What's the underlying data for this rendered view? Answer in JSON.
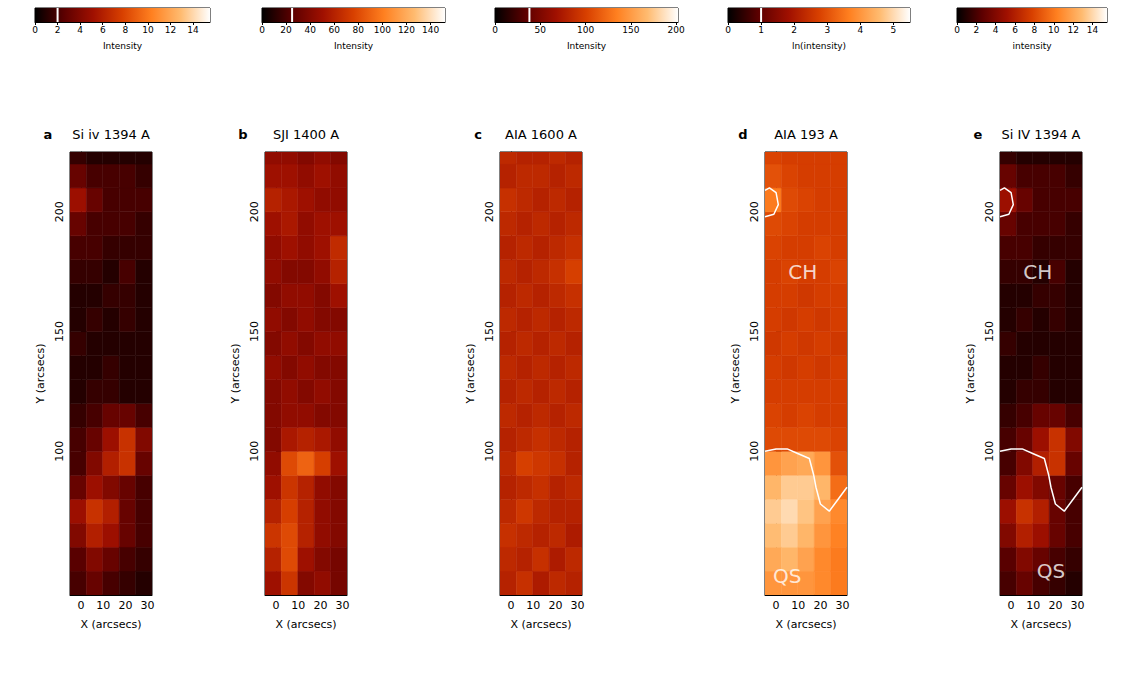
{
  "chart_data": [
    {
      "type": "heatmap",
      "panel_label": "a",
      "title": "Si iv 1394 A",
      "xlabel": "X (arcsecs)",
      "ylabel": "Y (arcsecs)",
      "xlim": [
        -5,
        32
      ],
      "ylim": [
        40,
        225
      ],
      "xticks": [
        0,
        10,
        20,
        30
      ],
      "yticks": [
        100,
        150,
        200
      ],
      "x_edges": [
        -5,
        2.4,
        9.8,
        17.2,
        24.6,
        32
      ],
      "y_edges": [
        40,
        50,
        60,
        70,
        80,
        90,
        100,
        110,
        120,
        130,
        140,
        150,
        160,
        170,
        180,
        190,
        200,
        210,
        220,
        225
      ],
      "values": [
        [
          2,
          3,
          2,
          1.5,
          1
        ],
        [
          2.5,
          4,
          3,
          2,
          1.5
        ],
        [
          4,
          6,
          5,
          3,
          2
        ],
        [
          5,
          7,
          6,
          3,
          2
        ],
        [
          3,
          5,
          4,
          3,
          2
        ],
        [
          2,
          4,
          6,
          7,
          3
        ],
        [
          2,
          3,
          5,
          7,
          4
        ],
        [
          1.5,
          2,
          3,
          3,
          2
        ],
        [
          1,
          1.5,
          1.5,
          1,
          1
        ],
        [
          1,
          1,
          1.5,
          1,
          1
        ],
        [
          1.5,
          1,
          1,
          1,
          1
        ],
        [
          1,
          1.5,
          1,
          1.5,
          1
        ],
        [
          1,
          1,
          1.5,
          1.5,
          1
        ],
        [
          1.5,
          1.5,
          1,
          2,
          1
        ],
        [
          2,
          2,
          1.5,
          1.5,
          1.5
        ],
        [
          3,
          2,
          2,
          2,
          1.5
        ],
        [
          5,
          3,
          2,
          2,
          2
        ],
        [
          3,
          2,
          2,
          2,
          1.5
        ],
        [
          1.5,
          1,
          1,
          1,
          1
        ]
      ],
      "colorbar": {
        "label": "Intensity",
        "range": [
          0,
          15.5
        ],
        "ticks": [
          0,
          2,
          4,
          6,
          8,
          10,
          12,
          14
        ],
        "marker": 2
      },
      "annotations": [],
      "contours": []
    },
    {
      "type": "heatmap",
      "panel_label": "b",
      "title": "SJI 1400 A",
      "xlabel": "X (arcsecs)",
      "ylabel": "Y (arcsecs)",
      "xlim": [
        -5,
        32
      ],
      "ylim": [
        40,
        225
      ],
      "xticks": [
        0,
        10,
        20,
        30
      ],
      "yticks": [
        100,
        150,
        200
      ],
      "x_edges": [
        -5,
        2.4,
        9.8,
        17.2,
        24.6,
        32
      ],
      "y_edges": [
        40,
        50,
        60,
        70,
        80,
        90,
        100,
        110,
        120,
        130,
        140,
        150,
        160,
        170,
        180,
        190,
        200,
        210,
        220,
        225
      ],
      "values": [
        [
          50,
          70,
          40,
          45,
          35
        ],
        [
          60,
          80,
          50,
          40,
          35
        ],
        [
          70,
          80,
          60,
          45,
          40
        ],
        [
          60,
          75,
          60,
          45,
          40
        ],
        [
          50,
          70,
          60,
          45,
          40
        ],
        [
          45,
          80,
          90,
          75,
          50
        ],
        [
          40,
          55,
          60,
          55,
          45
        ],
        [
          40,
          45,
          45,
          40,
          40
        ],
        [
          40,
          45,
          40,
          45,
          40
        ],
        [
          45,
          40,
          45,
          40,
          40
        ],
        [
          40,
          45,
          40,
          45,
          45
        ],
        [
          45,
          40,
          45,
          40,
          40
        ],
        [
          40,
          45,
          45,
          40,
          50
        ],
        [
          45,
          40,
          40,
          45,
          60
        ],
        [
          45,
          50,
          45,
          50,
          65
        ],
        [
          50,
          55,
          45,
          50,
          50
        ],
        [
          60,
          55,
          50,
          45,
          45
        ],
        [
          50,
          50,
          45,
          50,
          45
        ],
        [
          45,
          45,
          40,
          45,
          40
        ]
      ],
      "colorbar": {
        "label": "Intensity",
        "range": [
          0,
          152
        ],
        "ticks": [
          0,
          20,
          40,
          60,
          80,
          100,
          120,
          140
        ],
        "marker": 25
      },
      "annotations": [],
      "contours": []
    },
    {
      "type": "heatmap",
      "panel_label": "c",
      "title": "AIA 1600 A",
      "xlabel": "X (arcsecs)",
      "ylabel": "Y (arcsecs)",
      "xlim": [
        -5,
        32
      ],
      "ylim": [
        40,
        225
      ],
      "xticks": [
        0,
        10,
        20,
        30
      ],
      "yticks": [
        100,
        150,
        200
      ],
      "x_edges": [
        -5,
        2.4,
        9.8,
        17.2,
        24.6,
        32
      ],
      "y_edges": [
        40,
        50,
        60,
        70,
        80,
        90,
        100,
        110,
        120,
        130,
        140,
        150,
        160,
        170,
        180,
        190,
        200,
        210,
        220,
        225
      ],
      "values": [
        [
          80,
          90,
          75,
          85,
          80
        ],
        [
          85,
          80,
          90,
          75,
          85
        ],
        [
          90,
          85,
          80,
          85,
          75
        ],
        [
          85,
          95,
          85,
          80,
          80
        ],
        [
          80,
          85,
          90,
          80,
          85
        ],
        [
          85,
          100,
          95,
          90,
          80
        ],
        [
          80,
          85,
          90,
          85,
          80
        ],
        [
          85,
          80,
          85,
          80,
          85
        ],
        [
          80,
          85,
          80,
          85,
          80
        ],
        [
          85,
          80,
          85,
          80,
          85
        ],
        [
          80,
          85,
          80,
          85,
          80
        ],
        [
          85,
          80,
          85,
          80,
          85
        ],
        [
          80,
          85,
          80,
          85,
          90
        ],
        [
          85,
          80,
          85,
          90,
          100
        ],
        [
          80,
          85,
          80,
          85,
          90
        ],
        [
          85,
          80,
          85,
          80,
          85
        ],
        [
          90,
          85,
          80,
          85,
          80
        ],
        [
          80,
          85,
          85,
          80,
          85
        ],
        [
          85,
          80,
          80,
          85,
          80
        ]
      ],
      "colorbar": {
        "label": "Intensity",
        "range": [
          0,
          202
        ],
        "ticks": [
          0,
          50,
          100,
          150,
          200
        ],
        "marker": 38
      },
      "annotations": [],
      "contours": []
    },
    {
      "type": "heatmap",
      "panel_label": "d",
      "title": "AIA 193 A",
      "xlabel": "X (arcsecs)",
      "ylabel": "Y (arcsecs)",
      "xlim": [
        -5,
        32
      ],
      "ylim": [
        40,
        225
      ],
      "xticks": [
        0,
        10,
        20,
        30
      ],
      "yticks": [
        100,
        150,
        200
      ],
      "x_edges": [
        -5,
        2.4,
        9.8,
        17.2,
        24.6,
        32
      ],
      "y_edges": [
        40,
        50,
        60,
        70,
        80,
        90,
        100,
        110,
        120,
        130,
        140,
        150,
        160,
        170,
        180,
        190,
        200,
        210,
        220,
        225
      ],
      "values": [
        [
          4,
          4,
          4,
          3.8,
          3.6
        ],
        [
          4.3,
          4.5,
          4.2,
          3.8,
          3.6
        ],
        [
          4.6,
          4.8,
          4.5,
          4,
          3.7
        ],
        [
          4.8,
          5,
          4.7,
          4.2,
          3.8
        ],
        [
          4.5,
          4.8,
          4.8,
          4.5,
          3.4
        ],
        [
          4,
          4.2,
          4.3,
          4,
          3
        ],
        [
          2.9,
          2.9,
          2.9,
          2.9,
          2.8
        ],
        [
          2.8,
          2.7,
          2.8,
          2.7,
          2.7
        ],
        [
          2.7,
          2.7,
          2.7,
          2.7,
          2.7
        ],
        [
          2.7,
          2.6,
          2.7,
          2.6,
          2.7
        ],
        [
          2.6,
          2.7,
          2.6,
          2.7,
          2.6
        ],
        [
          2.7,
          2.6,
          2.7,
          2.6,
          2.7
        ],
        [
          2.7,
          2.7,
          2.6,
          2.7,
          2.7
        ],
        [
          2.7,
          2.8,
          2.7,
          2.7,
          2.8
        ],
        [
          2.8,
          2.7,
          2.7,
          2.8,
          2.7
        ],
        [
          2.9,
          2.8,
          2.7,
          2.7,
          2.7
        ],
        [
          3.6,
          2.9,
          2.8,
          2.7,
          2.7
        ],
        [
          3,
          2.8,
          2.7,
          2.7,
          2.7
        ],
        [
          2.8,
          2.7,
          2.7,
          2.7,
          2.7
        ]
      ],
      "colorbar": {
        "label": "ln(intensity)",
        "range": [
          0,
          5.5
        ],
        "ticks": [
          0,
          1,
          2,
          3,
          4,
          5
        ],
        "marker": 1
      },
      "annotations": [
        {
          "text": "CH",
          "x": 12,
          "y": 175
        },
        {
          "text": "QS",
          "x": 5,
          "y": 48
        }
      ],
      "contours": [
        [
          [
            -5,
            100
          ],
          [
            0,
            101
          ],
          [
            5,
            101
          ],
          [
            10,
            99
          ],
          [
            15,
            97
          ],
          [
            17,
            90
          ],
          [
            18,
            85
          ],
          [
            20,
            78
          ],
          [
            24,
            75
          ],
          [
            28,
            80
          ],
          [
            32,
            85
          ]
        ],
        [
          [
            -5,
            198
          ],
          [
            -1,
            199
          ],
          [
            1,
            203
          ],
          [
            0,
            208
          ],
          [
            -3,
            210
          ],
          [
            -5,
            209
          ]
        ]
      ]
    },
    {
      "type": "heatmap",
      "panel_label": "e",
      "title": "Si IV 1394 A",
      "xlabel": "X (arcsecs)",
      "ylabel": "Y (arcsecs)",
      "xlim": [
        -5,
        32
      ],
      "ylim": [
        40,
        225
      ],
      "xticks": [
        0,
        10,
        20,
        30
      ],
      "yticks": [
        100,
        150,
        200
      ],
      "x_edges": [
        -5,
        2.4,
        9.8,
        17.2,
        24.6,
        32
      ],
      "y_edges": [
        40,
        50,
        60,
        70,
        80,
        90,
        100,
        110,
        120,
        130,
        140,
        150,
        160,
        170,
        180,
        190,
        200,
        210,
        220,
        225
      ],
      "values": [
        [
          2,
          3,
          2,
          1.5,
          1
        ],
        [
          2.5,
          4,
          3,
          2,
          1.5
        ],
        [
          4,
          6,
          5,
          3,
          2
        ],
        [
          5,
          7,
          6,
          3,
          2
        ],
        [
          3,
          5,
          4,
          3,
          2
        ],
        [
          2,
          4,
          6,
          7,
          3
        ],
        [
          2,
          3,
          5,
          7,
          4
        ],
        [
          1.5,
          2,
          3,
          3,
          2
        ],
        [
          1,
          1.5,
          1.5,
          1,
          1
        ],
        [
          1,
          1,
          1.5,
          1,
          1
        ],
        [
          1.5,
          1,
          1,
          1,
          1
        ],
        [
          1,
          1.5,
          1,
          1.5,
          1
        ],
        [
          1,
          1,
          1.5,
          1.5,
          1
        ],
        [
          1.5,
          1.5,
          1,
          2,
          1
        ],
        [
          2,
          2,
          1.5,
          1.5,
          1.5
        ],
        [
          3,
          2,
          2,
          2,
          1.5
        ],
        [
          5,
          3,
          2,
          2,
          2
        ],
        [
          3,
          2,
          2,
          2,
          1.5
        ],
        [
          1.5,
          1,
          1,
          1,
          1
        ]
      ],
      "colorbar": {
        "label": "intensity",
        "range": [
          0,
          15.5
        ],
        "ticks": [
          0,
          2,
          4,
          6,
          8,
          10,
          12,
          14
        ]
      },
      "annotations": [
        {
          "text": "CH",
          "x": 12,
          "y": 175
        },
        {
          "text": "QS",
          "x": 18,
          "y": 50
        }
      ],
      "contours": [
        [
          [
            -5,
            100
          ],
          [
            0,
            101
          ],
          [
            5,
            101
          ],
          [
            10,
            99
          ],
          [
            15,
            97
          ],
          [
            17,
            90
          ],
          [
            18,
            85
          ],
          [
            20,
            78
          ],
          [
            24,
            75
          ],
          [
            28,
            80
          ],
          [
            32,
            85
          ]
        ],
        [
          [
            -5,
            198
          ],
          [
            -1,
            199
          ],
          [
            1,
            203
          ],
          [
            0,
            208
          ],
          [
            -3,
            210
          ],
          [
            -5,
            209
          ]
        ]
      ]
    }
  ]
}
